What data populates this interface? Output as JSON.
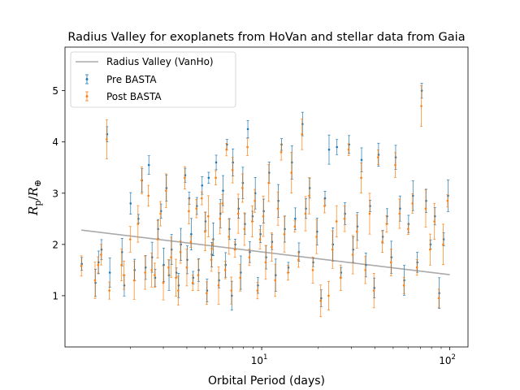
{
  "chart_data": {
    "type": "scatter",
    "title": "Radius Valley for exoplanets from HoVan and stellar data from Gaia",
    "xlabel": "Orbital Period (days)",
    "ylabel_main": "R",
    "ylabel_sub_num": "p",
    "ylabel_denom": "R",
    "ylabel_sub_den": "⊕",
    "x_scale": "log",
    "xlim": [
      0.9,
      125
    ],
    "ylim": [
      0.0,
      5.85
    ],
    "x_ticks": [
      {
        "value": 10,
        "base": "10",
        "exp": "1"
      },
      {
        "value": 100,
        "base": "10",
        "exp": "2"
      }
    ],
    "y_ticks": [
      1,
      2,
      3,
      4,
      5
    ],
    "legend_position": "upper-left",
    "valley_line": {
      "name": "Radius Valley (VanHo)",
      "color": "#aaaaaa",
      "x": [
        1.1,
        100
      ],
      "y": [
        2.28,
        1.41
      ]
    },
    "series": [
      {
        "name": "Pre BASTA",
        "color": "#1f77b4"
      },
      {
        "name": "Post BASTA",
        "color": "#ff7f0e"
      }
    ],
    "points": [
      {
        "x": 1.1,
        "pre": 1.62,
        "post": 1.58
      },
      {
        "x": 1.3,
        "pre": 1.25,
        "post": 1.3
      },
      {
        "x": 1.35,
        "pre": 1.65,
        "post": 1.6
      },
      {
        "x": 1.4,
        "pre": 1.9,
        "post": 1.8
      },
      {
        "x": 1.5,
        "pre": 4.15,
        "post": 4.05
      },
      {
        "x": 1.55,
        "pre": 1.45,
        "post": 1.1
      },
      {
        "x": 1.8,
        "pre": 1.85,
        "post": 1.6
      },
      {
        "x": 1.85,
        "pre": 1.2,
        "post": 1.4
      },
      {
        "x": 2.0,
        "pre": 2.8,
        "post": 2.1
      },
      {
        "x": 2.1,
        "pre": 1.5,
        "post": 1.3
      },
      {
        "x": 2.2,
        "pre": 2.5,
        "post": 2.4
      },
      {
        "x": 2.3,
        "pre": 3.25,
        "post": 3.25
      },
      {
        "x": 2.4,
        "pre": 1.55,
        "post": 1.45
      },
      {
        "x": 2.5,
        "pre": 3.55,
        "post": 2.95
      },
      {
        "x": 2.6,
        "pre": 1.75,
        "post": 1.5
      },
      {
        "x": 2.7,
        "pre": 1.35,
        "post": 1.4
      },
      {
        "x": 2.8,
        "pre": 2.3,
        "post": 2.1
      },
      {
        "x": 2.9,
        "pre": 2.65,
        "post": 2.6
      },
      {
        "x": 3.0,
        "pre": 1.6,
        "post": 1.25
      },
      {
        "x": 3.1,
        "pre": 3.1,
        "post": 3.05
      },
      {
        "x": 3.2,
        "pre": 1.4,
        "post": 1.55
      },
      {
        "x": 3.3,
        "pre": 1.9,
        "post": 1.75
      },
      {
        "x": 3.5,
        "pre": 1.45,
        "post": 1.35
      },
      {
        "x": 3.6,
        "pre": 1.2,
        "post": 1.1
      },
      {
        "x": 3.7,
        "pre": 2.0,
        "post": 1.85
      },
      {
        "x": 3.9,
        "pre": 3.35,
        "post": 3.3
      },
      {
        "x": 4.0,
        "pre": 1.7,
        "post": 1.55
      },
      {
        "x": 4.1,
        "pre": 2.9,
        "post": 2.65
      },
      {
        "x": 4.2,
        "pre": 2.2,
        "post": 2.05
      },
      {
        "x": 4.3,
        "pre": 1.35,
        "post": 1.25
      },
      {
        "x": 4.5,
        "pre": 2.75,
        "post": 2.7
      },
      {
        "x": 4.6,
        "pre": 1.5,
        "post": 1.4
      },
      {
        "x": 4.8,
        "pre": 3.15,
        "post": 2.9
      },
      {
        "x": 5.0,
        "pre": 2.45,
        "post": 2.25
      },
      {
        "x": 5.1,
        "pre": 1.1,
        "post": 1.05
      },
      {
        "x": 5.2,
        "pre": 3.3,
        "post": 2.55
      },
      {
        "x": 5.4,
        "pre": 1.8,
        "post": 1.7
      },
      {
        "x": 5.5,
        "pre": 2.1,
        "post": 2.0
      },
      {
        "x": 5.7,
        "pre": 3.6,
        "post": 3.3
      },
      {
        "x": 5.9,
        "pre": 1.3,
        "post": 1.2
      },
      {
        "x": 6.0,
        "pre": 2.6,
        "post": 2.5
      },
      {
        "x": 6.2,
        "pre": 3.05,
        "post": 2.8
      },
      {
        "x": 6.4,
        "pre": 1.6,
        "post": 1.5
      },
      {
        "x": 6.5,
        "pre": 3.95,
        "post": 3.85
      },
      {
        "x": 6.7,
        "pre": 2.3,
        "post": 2.15
      },
      {
        "x": 6.9,
        "pre": 1.0,
        "post": 1.1
      },
      {
        "x": 7.0,
        "pre": 3.6,
        "post": 3.45
      },
      {
        "x": 7.2,
        "pre": 2.0,
        "post": 1.9
      },
      {
        "x": 7.5,
        "pre": 2.7,
        "post": 2.6
      },
      {
        "x": 7.7,
        "pre": 1.45,
        "post": 1.35
      },
      {
        "x": 7.9,
        "pre": 3.2,
        "post": 3.1
      },
      {
        "x": 8.1,
        "pre": 2.4,
        "post": 2.3
      },
      {
        "x": 8.4,
        "pre": 4.25,
        "post": 3.9
      },
      {
        "x": 8.6,
        "pre": 1.85,
        "post": 1.75
      },
      {
        "x": 8.9,
        "pre": 2.55,
        "post": 2.45
      },
      {
        "x": 9.2,
        "pre": 3.0,
        "post": 2.85
      },
      {
        "x": 9.5,
        "pre": 1.2,
        "post": 1.1
      },
      {
        "x": 9.8,
        "pre": 2.2,
        "post": 2.1
      },
      {
        "x": 10.2,
        "pre": 2.65,
        "post": 2.55
      },
      {
        "x": 10.5,
        "pre": 1.75,
        "post": 1.65
      },
      {
        "x": 10.9,
        "pre": 3.4,
        "post": 3.2
      },
      {
        "x": 11.3,
        "pre": 2.05,
        "post": 1.95
      },
      {
        "x": 11.8,
        "pre": 1.4,
        "post": 1.3
      },
      {
        "x": 12.2,
        "pre": 2.85,
        "post": 2.7
      },
      {
        "x": 12.7,
        "pre": 3.95,
        "post": 3.8
      },
      {
        "x": 13.2,
        "pre": 2.3,
        "post": 2.2
      },
      {
        "x": 13.8,
        "pre": 1.55,
        "post": 1.45
      },
      {
        "x": 14.4,
        "pre": 3.6,
        "post": 3.4
      },
      {
        "x": 15.0,
        "pre": 2.5,
        "post": 2.35
      },
      {
        "x": 15.7,
        "pre": 1.85,
        "post": 1.7
      },
      {
        "x": 16.4,
        "pre": 4.35,
        "post": 4.15
      },
      {
        "x": 17.1,
        "pre": 2.7,
        "post": 2.6
      },
      {
        "x": 17.9,
        "pre": 3.1,
        "post": 2.95
      },
      {
        "x": 18.7,
        "pre": 1.65,
        "post": 1.5
      },
      {
        "x": 19.6,
        "pre": 2.25,
        "post": 2.15
      },
      {
        "x": 20.6,
        "pre": 0.95,
        "post": 0.9
      },
      {
        "x": 21.6,
        "pre": 2.9,
        "post": 2.75
      },
      {
        "x": 22.7,
        "pre": 3.85,
        "post": 1.0
      },
      {
        "x": 23.8,
        "pre": 2.0,
        "post": 1.9
      },
      {
        "x": 25.0,
        "pre": 3.9,
        "post": 2.45
      },
      {
        "x": 26.3,
        "pre": 1.45,
        "post": 1.35
      },
      {
        "x": 27.6,
        "pre": 2.6,
        "post": 2.5
      },
      {
        "x": 29.0,
        "pre": 3.95,
        "post": 3.85
      },
      {
        "x": 30.5,
        "pre": 1.9,
        "post": 1.8
      },
      {
        "x": 32.1,
        "pre": 2.35,
        "post": 2.25
      },
      {
        "x": 33.8,
        "pre": 3.65,
        "post": 3.3
      },
      {
        "x": 35.6,
        "pre": 1.6,
        "post": 1.5
      },
      {
        "x": 37.5,
        "pre": 2.75,
        "post": 2.6
      },
      {
        "x": 39.5,
        "pre": 1.15,
        "post": 1.1
      },
      {
        "x": 41.6,
        "pre": 3.75,
        "post": 3.7
      },
      {
        "x": 43.8,
        "pre": 2.15,
        "post": 2.05
      },
      {
        "x": 46.2,
        "pre": 2.55,
        "post": 2.4
      },
      {
        "x": 48.7,
        "pre": 1.75,
        "post": 1.65
      },
      {
        "x": 51.3,
        "pre": 3.7,
        "post": 3.55
      },
      {
        "x": 54.1,
        "pre": 2.7,
        "post": 2.6
      },
      {
        "x": 57.0,
        "pre": 1.3,
        "post": 1.2
      },
      {
        "x": 60.1,
        "pre": 2.4,
        "post": 2.3
      },
      {
        "x": 63.4,
        "pre": 2.95,
        "post": 2.8
      },
      {
        "x": 66.9,
        "pre": 1.65,
        "post": 1.55
      },
      {
        "x": 70.6,
        "pre": 5.0,
        "post": 4.7
      },
      {
        "x": 74.5,
        "pre": 2.85,
        "post": 2.7
      },
      {
        "x": 78.6,
        "pre": 2.0,
        "post": 1.9
      },
      {
        "x": 82.9,
        "pre": 2.55,
        "post": 2.45
      },
      {
        "x": 87.5,
        "pre": 1.05,
        "post": 0.95
      },
      {
        "x": 92.3,
        "pre": 2.1,
        "post": 2.0
      },
      {
        "x": 97.4,
        "pre": 2.95,
        "post": 2.85
      }
    ]
  }
}
